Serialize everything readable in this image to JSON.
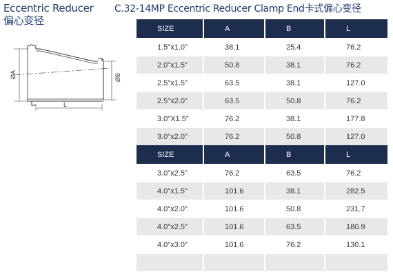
{
  "header": {
    "title_en": "Eccentric Reducer",
    "title_cn": "偏心变径",
    "product_title": "C.32-14MP Eccentric Reducer Clamp End卡式偏心变径"
  },
  "diagram": {
    "label_a": "ØA",
    "label_b": "ØB",
    "label_l": "L"
  },
  "table1": {
    "headers": [
      "SIZE",
      "A",
      "B",
      "L"
    ],
    "rows": [
      [
        "1.5\"x1.0\"",
        "38.1",
        "25.4",
        "76.2"
      ],
      [
        "2.0\"x1.5\"",
        "50.8",
        "38.1",
        "76.2"
      ],
      [
        "2.5\"x1.5\"",
        "63.5",
        "38.1",
        "127.0"
      ],
      [
        "2.5\"x2.0\"",
        "63.5",
        "50.8",
        "76.2"
      ],
      [
        "3.0\"X1.5\"",
        "76.2",
        "38.1",
        "177.8"
      ],
      [
        "3.0\"x2.0\"",
        "76.2",
        "50.8",
        "127.0"
      ]
    ]
  },
  "table2": {
    "headers": [
      "SIZE",
      "A",
      "B",
      "L"
    ],
    "rows": [
      [
        "3.0\"x2.5\"",
        "76.2",
        "63.5",
        "76.2"
      ],
      [
        "4.0\"x1.5\"",
        "101.6",
        "38.1",
        "282.5"
      ],
      [
        "4.0\"x2.0\"",
        "101.6",
        "50.8",
        "231.7"
      ],
      [
        "4.0\"x2.5\"",
        "101.6",
        "63.5",
        "180.9"
      ],
      [
        "4.0\"x3.0\"",
        "101.6",
        "76.2",
        "130.1"
      ]
    ]
  },
  "colors": {
    "title": "#1c3b73",
    "header_bg": "#1c2d4e",
    "row_alt": "#e8e8e8"
  }
}
